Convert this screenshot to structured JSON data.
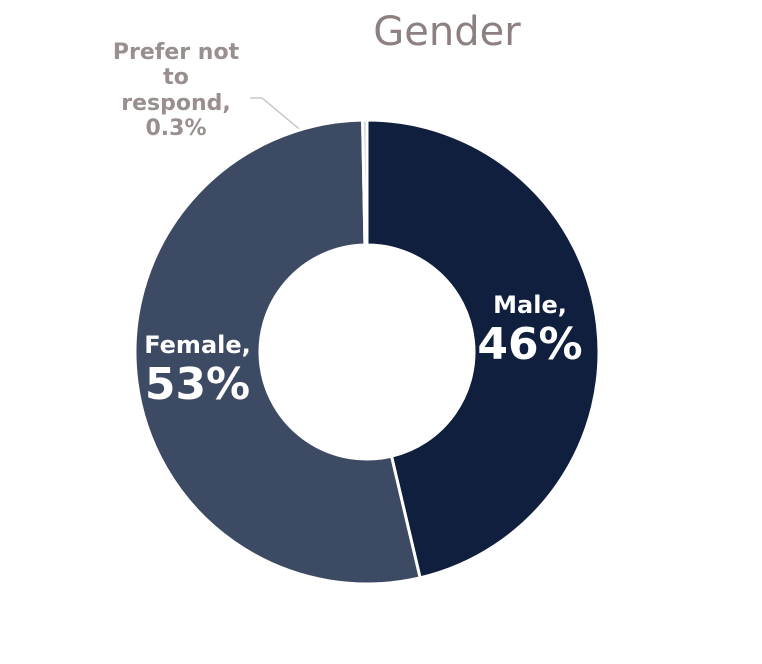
{
  "chart_data": {
    "type": "donut",
    "title": "Gender",
    "categories": [
      "Male,",
      "Female,",
      "Prefer not to respond,"
    ],
    "values": [
      46,
      53,
      0.3
    ],
    "value_labels": [
      "46%",
      "53%",
      "0.3%"
    ],
    "colors": [
      "#0f1f3d",
      "#3d4a63",
      "#c8cbd3"
    ]
  }
}
